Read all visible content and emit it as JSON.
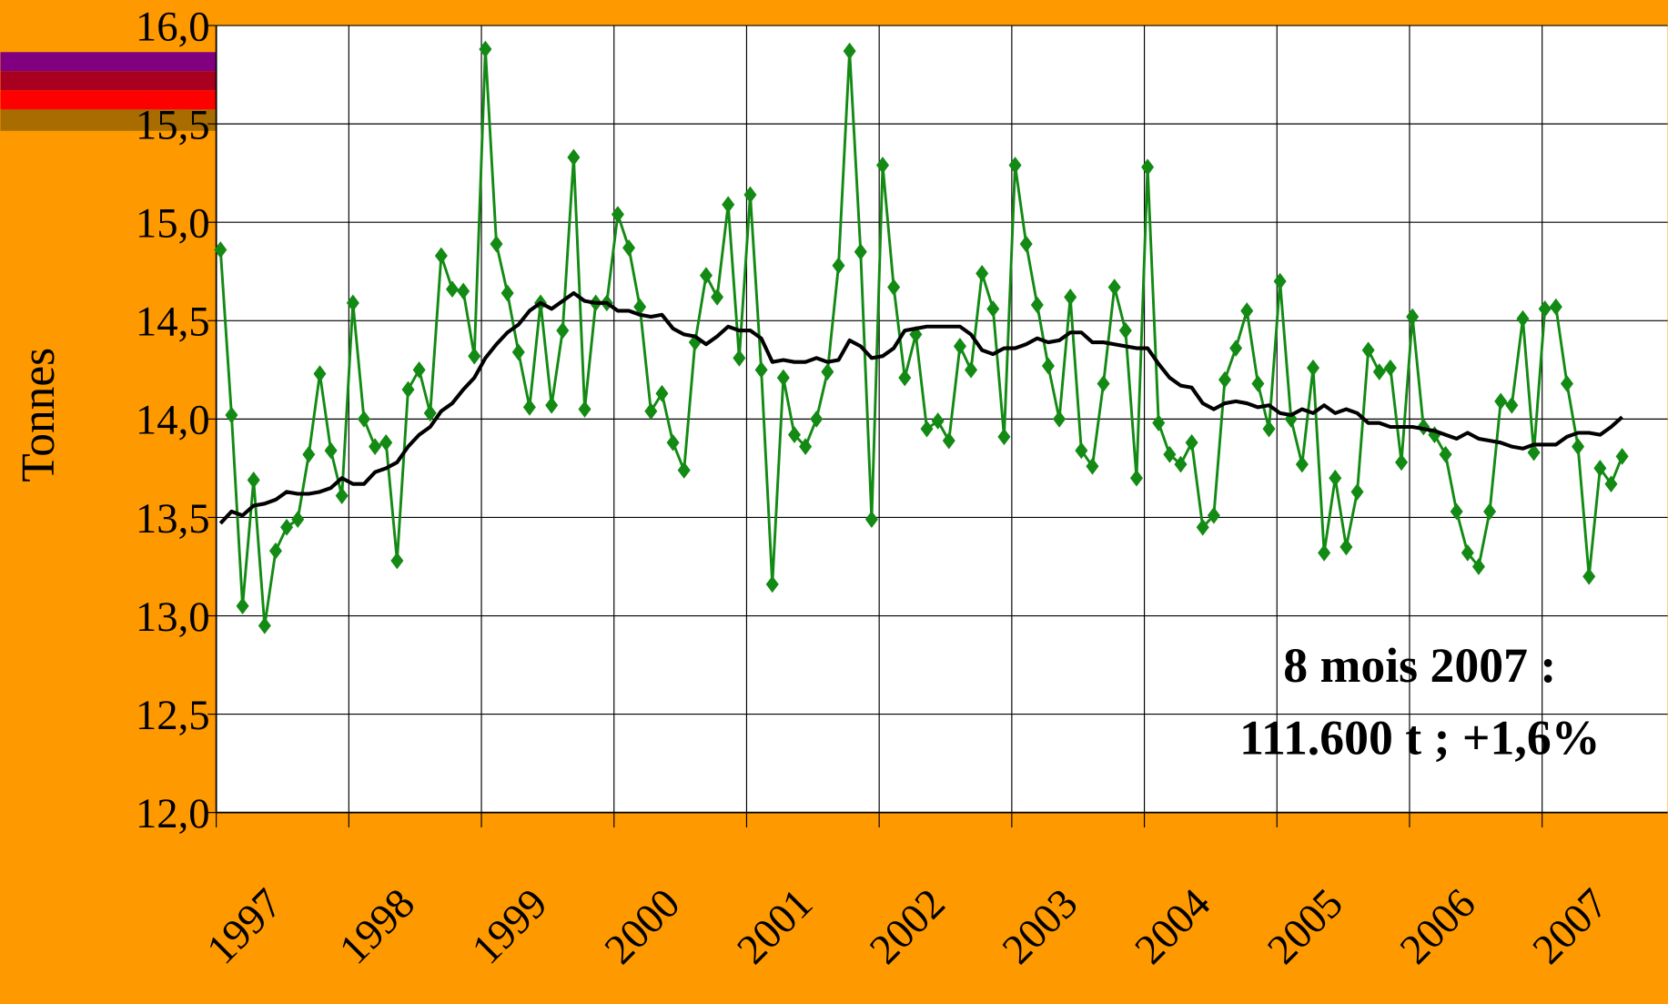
{
  "chart_data": {
    "type": "line",
    "ylabel": "Tonnes",
    "annotation": [
      "8 mois 2007 :",
      "111.600 t ; +1,6%"
    ],
    "categories": [
      "1997",
      null,
      null,
      null,
      null,
      null,
      null,
      null,
      null,
      null,
      null,
      null,
      "1998",
      null,
      null,
      null,
      null,
      null,
      null,
      null,
      null,
      null,
      null,
      null,
      "1999",
      null,
      null,
      null,
      null,
      null,
      null,
      null,
      null,
      null,
      null,
      null,
      "2000",
      null,
      null,
      null,
      null,
      null,
      null,
      null,
      null,
      null,
      null,
      null,
      "2001",
      null,
      null,
      null,
      null,
      null,
      null,
      null,
      null,
      null,
      null,
      null,
      "2002",
      null,
      null,
      null,
      null,
      null,
      null,
      null,
      null,
      null,
      null,
      null,
      "2003",
      null,
      null,
      null,
      null,
      null,
      null,
      null,
      null,
      null,
      null,
      null,
      "2004",
      null,
      null,
      null,
      null,
      null,
      null,
      null,
      null,
      null,
      null,
      null,
      "2005",
      null,
      null,
      null,
      null,
      null,
      null,
      null,
      null,
      null,
      null,
      null,
      "2006",
      null,
      null,
      null,
      null,
      null,
      null,
      null,
      null,
      null,
      null,
      null,
      "2007",
      null,
      null,
      null,
      null,
      null,
      null,
      null
    ],
    "series": [
      {
        "color": "#138a13",
        "marker": "diamond",
        "values": [
          14.86,
          14.02,
          13.05,
          13.69,
          12.95,
          13.33,
          13.45,
          13.49,
          13.82,
          14.23,
          13.84,
          13.61,
          14.59,
          14.0,
          13.86,
          13.88,
          13.28,
          14.15,
          14.25,
          14.03,
          14.83,
          14.66,
          14.65,
          14.32,
          15.88,
          14.89,
          14.64,
          14.34,
          14.06,
          14.59,
          14.07,
          14.45,
          15.33,
          14.05,
          14.59,
          14.59,
          15.04,
          14.87,
          14.57,
          14.04,
          14.13,
          13.88,
          13.74,
          14.39,
          14.73,
          14.62,
          15.09,
          14.31,
          15.14,
          14.25,
          13.16,
          14.21,
          13.92,
          13.86,
          14.0,
          14.24,
          14.78,
          15.87,
          14.85,
          13.49,
          15.29,
          14.67,
          14.21,
          14.43,
          13.95,
          13.99,
          13.89,
          14.37,
          14.25,
          14.74,
          14.56,
          13.91,
          15.29,
          14.89,
          14.58,
          14.27,
          14.0,
          14.62,
          13.84,
          13.76,
          14.18,
          14.67,
          14.45,
          13.7,
          15.28,
          13.98,
          13.82,
          13.77,
          13.88,
          13.45,
          13.51,
          14.2,
          14.36,
          14.55,
          14.18,
          13.95,
          14.7,
          14.0,
          13.77,
          14.26,
          13.32,
          13.7,
          13.35,
          13.63,
          14.35,
          14.24,
          14.26,
          13.78,
          14.52,
          13.96,
          13.92,
          13.82,
          13.53,
          13.32,
          13.25,
          13.53,
          14.09,
          14.07,
          14.51,
          13.83,
          14.56,
          14.57,
          14.18,
          13.86,
          13.2,
          13.75,
          13.67,
          13.81
        ]
      },
      {
        "color": "#000000",
        "values": [
          13.47,
          13.53,
          13.51,
          13.56,
          13.57,
          13.59,
          13.63,
          13.62,
          13.62,
          13.63,
          13.65,
          13.7,
          13.67,
          13.67,
          13.73,
          13.75,
          13.78,
          13.86,
          13.92,
          13.96,
          14.04,
          14.08,
          14.15,
          14.21,
          14.31,
          14.38,
          14.44,
          14.48,
          14.55,
          14.59,
          14.56,
          14.6,
          14.64,
          14.6,
          14.59,
          14.59,
          14.55,
          14.55,
          14.53,
          14.52,
          14.53,
          14.46,
          14.43,
          14.42,
          14.38,
          14.42,
          14.47,
          14.45,
          14.45,
          14.41,
          14.29,
          14.3,
          14.29,
          14.29,
          14.31,
          14.29,
          14.3,
          14.4,
          14.37,
          14.31,
          14.32,
          14.36,
          14.45,
          14.46,
          14.47,
          14.47,
          14.47,
          14.47,
          14.43,
          14.35,
          14.33,
          14.36,
          14.36,
          14.38,
          14.41,
          14.39,
          14.4,
          14.44,
          14.44,
          14.39,
          14.39,
          14.38,
          14.37,
          14.36,
          14.36,
          14.28,
          14.21,
          14.17,
          14.16,
          14.08,
          14.05,
          14.08,
          14.09,
          14.08,
          14.06,
          14.07,
          14.03,
          14.02,
          14.05,
          14.03,
          14.07,
          14.03,
          14.05,
          14.03,
          13.98,
          13.98,
          13.96,
          13.96,
          13.96,
          13.95,
          13.94,
          13.92,
          13.9,
          13.93,
          13.9,
          13.89,
          13.88,
          13.86,
          13.85,
          13.87,
          13.87,
          13.87,
          13.91,
          13.93,
          13.93,
          13.92,
          13.96,
          14.01
        ]
      }
    ],
    "ylim": [
      12,
      16
    ],
    "yticks": [
      {
        "value": 12,
        "label": "12,0"
      },
      {
        "value": 12.5,
        "label": "12,5"
      },
      {
        "value": 13,
        "label": "13,0"
      },
      {
        "value": 13.5,
        "label": "13,5"
      },
      {
        "value": 14,
        "label": "14,0"
      },
      {
        "value": 14.5,
        "label": "14,5"
      },
      {
        "value": 15,
        "label": "15,0"
      },
      {
        "value": 15.5,
        "label": "15,5"
      },
      {
        "value": 16,
        "label": "16,0"
      }
    ],
    "grid": true
  }
}
